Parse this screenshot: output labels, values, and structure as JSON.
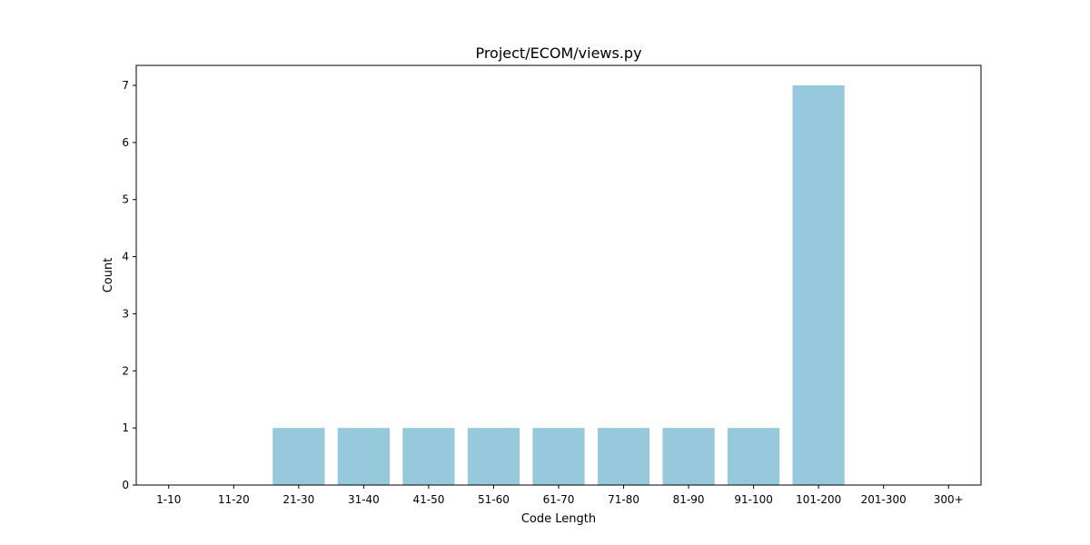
{
  "chart_data": {
    "type": "bar",
    "title": "Project/ECOM/views.py",
    "xlabel": "Code Length",
    "ylabel": "Count",
    "categories": [
      "1-10",
      "11-20",
      "21-30",
      "31-40",
      "41-50",
      "51-60",
      "61-70",
      "71-80",
      "81-90",
      "91-100",
      "101-200",
      "201-300",
      "300+"
    ],
    "values": [
      0,
      0,
      1,
      1,
      1,
      1,
      1,
      1,
      1,
      1,
      7,
      0,
      0
    ],
    "yticks": [
      0,
      1,
      2,
      3,
      4,
      5,
      6,
      7
    ],
    "ylim": [
      0,
      7.35
    ],
    "grid": false,
    "bar_color": "#96c9dc"
  }
}
